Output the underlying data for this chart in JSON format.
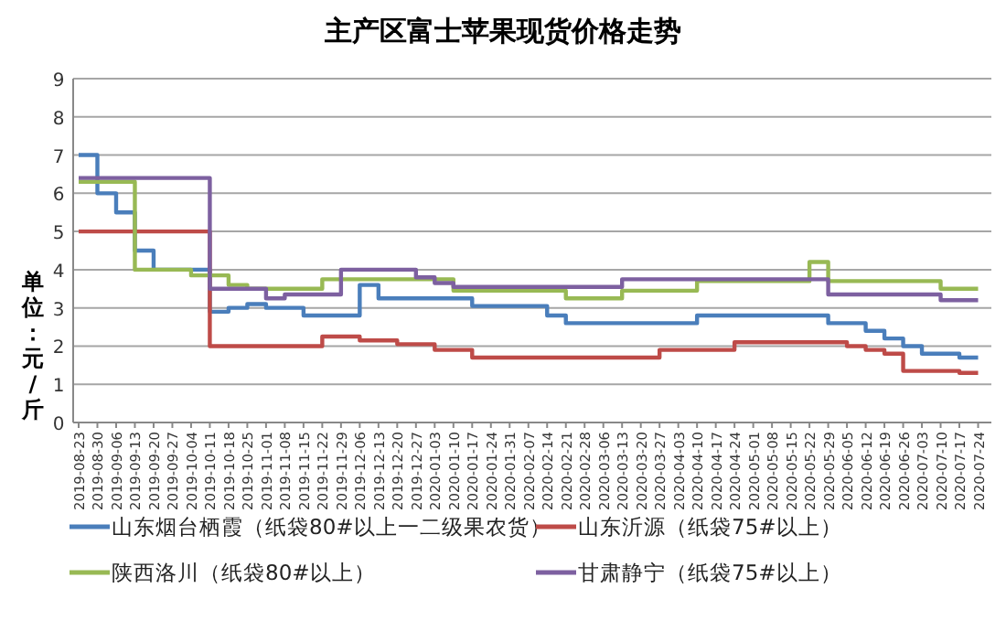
{
  "chart_data": {
    "type": "step",
    "title": "主产区富士苹果现货价格走势",
    "ylabel": "单位：元/斤",
    "categories": [
      "2019-08-23",
      "2019-08-30",
      "2019-09-06",
      "2019-09-13",
      "2019-09-20",
      "2019-09-27",
      "2019-10-04",
      "2019-10-11",
      "2019-10-18",
      "2019-10-25",
      "2019-11-01",
      "2019-11-08",
      "2019-11-15",
      "2019-11-22",
      "2019-11-29",
      "2019-12-06",
      "2019-12-13",
      "2019-12-20",
      "2019-12-27",
      "2020-01-03",
      "2020-01-10",
      "2020-01-17",
      "2020-01-24",
      "2020-01-31",
      "2020-02-07",
      "2020-02-14",
      "2020-02-21",
      "2020-02-28",
      "2020-03-06",
      "2020-03-13",
      "2020-03-20",
      "2020-03-27",
      "2020-04-03",
      "2020-04-10",
      "2020-04-17",
      "2020-04-24",
      "2020-05-01",
      "2020-05-08",
      "2020-05-15",
      "2020-05-22",
      "2020-05-29",
      "2020-06-05",
      "2020-06-12",
      "2020-06-19",
      "2020-06-26",
      "2020-07-03",
      "2020-07-10",
      "2020-07-17",
      "2020-07-24"
    ],
    "series": [
      {
        "name": "山东烟台栖霞（纸袋80#以上一二级果农货）",
        "color": "#4a7ebb",
        "values": [
          7.0,
          6.0,
          5.5,
          4.5,
          4.0,
          4.0,
          4.0,
          2.9,
          3.0,
          3.1,
          3.0,
          3.0,
          2.8,
          2.8,
          2.8,
          3.6,
          3.25,
          3.25,
          3.25,
          3.25,
          3.25,
          3.05,
          3.05,
          3.05,
          3.05,
          2.8,
          2.6,
          2.6,
          2.6,
          2.6,
          2.6,
          2.6,
          2.6,
          2.8,
          2.8,
          2.8,
          2.8,
          2.8,
          2.8,
          2.8,
          2.6,
          2.6,
          2.4,
          2.2,
          2.0,
          1.8,
          1.8,
          1.7,
          1.7
        ]
      },
      {
        "name": "山东沂源（纸袋75#以上）",
        "color": "#be4b48",
        "values": [
          5.0,
          5.0,
          5.0,
          5.0,
          5.0,
          5.0,
          5.0,
          2.0,
          2.0,
          2.0,
          2.0,
          2.0,
          2.0,
          2.25,
          2.25,
          2.15,
          2.15,
          2.05,
          2.05,
          1.9,
          1.9,
          1.7,
          1.7,
          1.7,
          1.7,
          1.7,
          1.7,
          1.7,
          1.7,
          1.7,
          1.7,
          1.9,
          1.9,
          1.9,
          1.9,
          2.1,
          2.1,
          2.1,
          2.1,
          2.1,
          2.1,
          2.0,
          1.9,
          1.8,
          1.35,
          1.35,
          1.35,
          1.3,
          1.3
        ]
      },
      {
        "name": "陕西洛川（纸袋80#以上）",
        "color": "#98b954",
        "values": [
          6.3,
          6.3,
          6.3,
          4.0,
          4.0,
          4.0,
          3.85,
          3.85,
          3.6,
          3.5,
          3.5,
          3.5,
          3.5,
          3.75,
          3.75,
          3.75,
          3.75,
          3.75,
          3.75,
          3.75,
          3.45,
          3.45,
          3.45,
          3.45,
          3.45,
          3.45,
          3.25,
          3.25,
          3.25,
          3.45,
          3.45,
          3.45,
          3.45,
          3.7,
          3.7,
          3.7,
          3.7,
          3.7,
          3.7,
          4.2,
          3.7,
          3.7,
          3.7,
          3.7,
          3.7,
          3.7,
          3.5,
          3.5,
          3.5
        ]
      },
      {
        "name": "甘肃静宁（纸袋75#以上）",
        "color": "#7d60a0",
        "values": [
          6.4,
          6.4,
          6.4,
          6.4,
          6.4,
          6.4,
          6.4,
          3.5,
          3.5,
          3.5,
          3.25,
          3.35,
          3.35,
          3.35,
          4.0,
          4.0,
          4.0,
          4.0,
          3.8,
          3.65,
          3.55,
          3.55,
          3.55,
          3.55,
          3.55,
          3.55,
          3.55,
          3.55,
          3.55,
          3.75,
          3.75,
          3.75,
          3.75,
          3.75,
          3.75,
          3.75,
          3.75,
          3.75,
          3.75,
          3.75,
          3.35,
          3.35,
          3.35,
          3.35,
          3.35,
          3.35,
          3.2,
          3.2,
          3.2
        ]
      }
    ],
    "ylim": [
      0,
      9
    ],
    "yticks": [
      0,
      1,
      2,
      3,
      4,
      5,
      6,
      7,
      8,
      9
    ],
    "grid": "y",
    "legend": "bottom"
  }
}
